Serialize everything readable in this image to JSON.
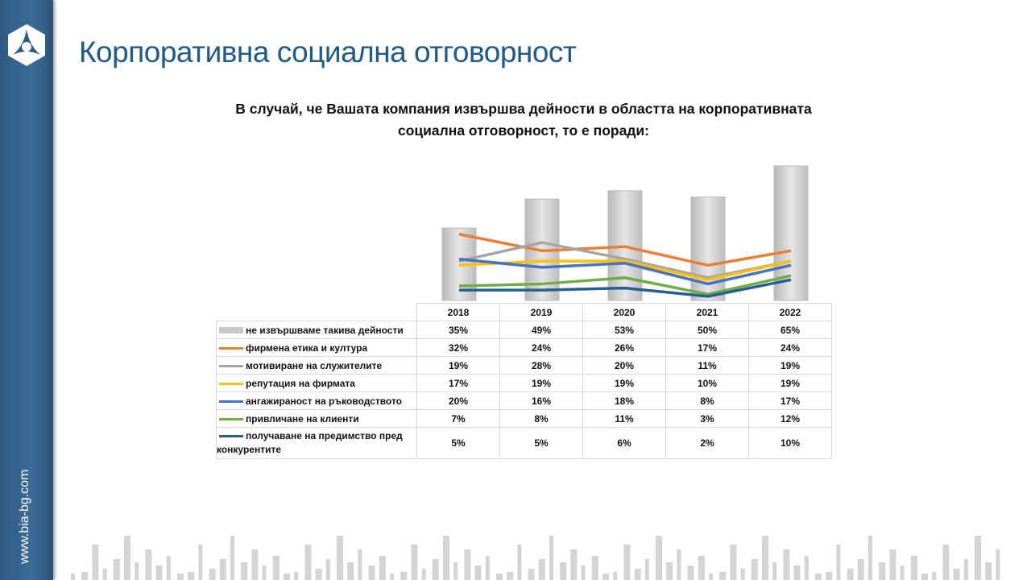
{
  "sidebar": {
    "website": "www.bia-bg.com"
  },
  "page": {
    "title": "Корпоративна социална отговорност"
  },
  "chart_data": {
    "type": "bar+line",
    "title": "В случай, че Вашата компания извършва дейности в областта на корпоративната социална отговорност, то е поради:",
    "categories": [
      "2018",
      "2019",
      "2020",
      "2021",
      "2022"
    ],
    "ylim": [
      0,
      70
    ],
    "series": [
      {
        "name": "не извършваме такива дейности",
        "kind": "bar",
        "color": "#c8c8c8",
        "values": [
          35,
          49,
          53,
          50,
          65
        ],
        "labels": [
          "35%",
          "49%",
          "53%",
          "50%",
          "65%"
        ]
      },
      {
        "name": "фирмена етика и култура",
        "kind": "line",
        "color": "#ed7d31",
        "values": [
          32,
          24,
          26,
          17,
          24
        ],
        "labels": [
          "32%",
          "24%",
          "26%",
          "17%",
          "24%"
        ]
      },
      {
        "name": "мотивиране на служителите",
        "kind": "line",
        "color": "#a5a5a5",
        "values": [
          19,
          28,
          20,
          11,
          19
        ],
        "labels": [
          "19%",
          "28%",
          "20%",
          "11%",
          "19%"
        ]
      },
      {
        "name": "репутация на фирмата",
        "kind": "line",
        "color": "#ffc000",
        "values": [
          17,
          19,
          19,
          10,
          19
        ],
        "labels": [
          "17%",
          "19%",
          "19%",
          "10%",
          "19%"
        ]
      },
      {
        "name": "ангажираност на ръководството",
        "kind": "line",
        "color": "#4472c4",
        "values": [
          20,
          16,
          18,
          8,
          17
        ],
        "labels": [
          "20%",
          "16%",
          "18%",
          "8%",
          "17%"
        ]
      },
      {
        "name": "привличане на клиенти",
        "kind": "line",
        "color": "#70ad47",
        "values": [
          7,
          8,
          11,
          3,
          12
        ],
        "labels": [
          "7%",
          "8%",
          "11%",
          "3%",
          "12%"
        ]
      },
      {
        "name": "получаване на предимство пред конкурентите",
        "kind": "line",
        "color": "#255e91",
        "values": [
          5,
          5,
          6,
          2,
          10
        ],
        "labels": [
          "5%",
          "5%",
          "6%",
          "2%",
          "10%"
        ]
      }
    ]
  }
}
